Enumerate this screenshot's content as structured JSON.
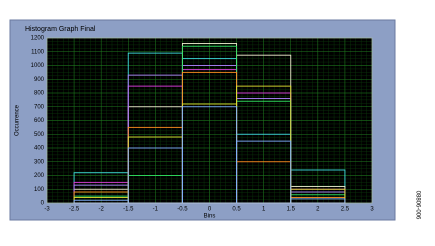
{
  "chart_data": {
    "type": "histogram",
    "title": "Histogram Graph Final",
    "x_label": "Bins",
    "y_label": "Occurrence",
    "figure_id": "08806-006",
    "bins": [
      -2.5,
      -1.5,
      -0.5,
      0.5,
      1.5,
      2.5
    ],
    "series": [
      {
        "color": "#40e0e0",
        "values": [
          220,
          1090,
          1050,
          500,
          240
        ]
      },
      {
        "color": "#f0f0d0",
        "values": [
          100,
          700,
          1160,
          1075,
          120
        ]
      },
      {
        "color": "#e040e0",
        "values": [
          150,
          850,
          970,
          800,
          100
        ]
      },
      {
        "color": "#b080ff",
        "values": [
          130,
          930,
          1000,
          760,
          80
        ]
      },
      {
        "color": "#30e060",
        "values": [
          50,
          200,
          1140,
          740,
          60
        ]
      },
      {
        "color": "#ff9020",
        "values": [
          80,
          550,
          950,
          300,
          40
        ]
      },
      {
        "color": "#e0e030",
        "values": [
          40,
          480,
          720,
          850,
          100
        ]
      },
      {
        "color": "#80b0ff",
        "values": [
          20,
          400,
          700,
          450,
          30
        ]
      }
    ],
    "xlim": [
      -3,
      3
    ],
    "xticks": [
      -3,
      -2.5,
      -2,
      -1.5,
      -1,
      -0.5,
      0,
      0.5,
      1,
      1.5,
      2,
      2.5,
      3
    ],
    "ylim": [
      0,
      1200
    ],
    "yticks": [
      0,
      100,
      200,
      300,
      400,
      500,
      600,
      700,
      800,
      900,
      1000,
      1100,
      1200
    ],
    "grid": true
  }
}
